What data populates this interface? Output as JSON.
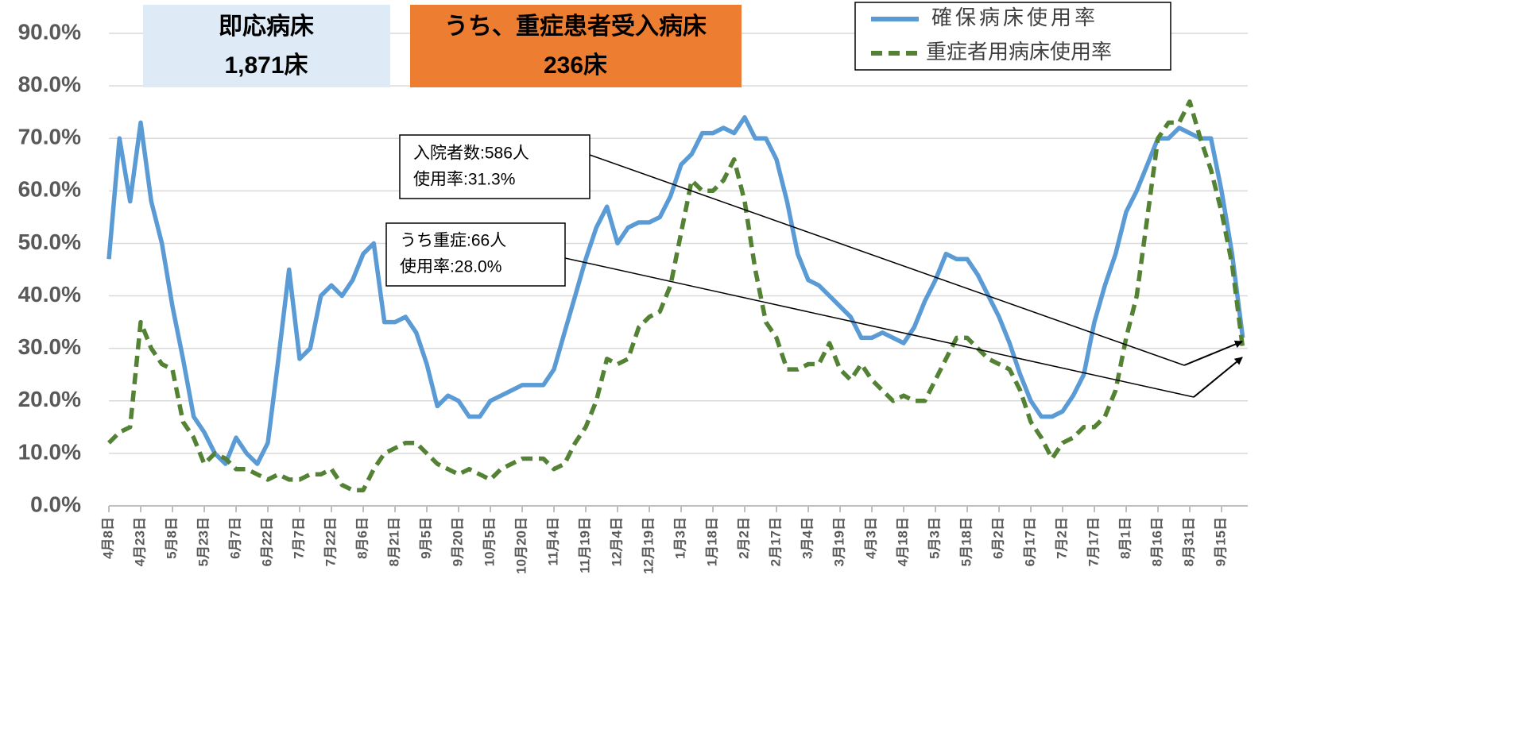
{
  "chart_data": {
    "type": "line",
    "categories": [
      "4月8日",
      null,
      null,
      "4月23日",
      null,
      null,
      "5月8日",
      null,
      null,
      "5月23日",
      null,
      null,
      "6月7日",
      null,
      null,
      "6月22日",
      null,
      null,
      "7月7日",
      null,
      null,
      "7月22日",
      null,
      null,
      "8月6日",
      null,
      null,
      "8月21日",
      null,
      null,
      "9月5日",
      null,
      null,
      "9月20日",
      null,
      null,
      "10月5日",
      null,
      null,
      "10月20日",
      null,
      null,
      "11月4日",
      null,
      null,
      "11月19日",
      null,
      null,
      "12月4日",
      null,
      null,
      "12月19日",
      null,
      null,
      "1月3日",
      null,
      null,
      "1月18日",
      null,
      null,
      "2月2日",
      null,
      null,
      "2月17日",
      null,
      null,
      "3月4日",
      null,
      null,
      "3月19日",
      null,
      null,
      "4月3日",
      null,
      null,
      "4月18日",
      null,
      null,
      "5月3日",
      null,
      null,
      "5月18日",
      null,
      null,
      "6月2日",
      null,
      null,
      "6月17日",
      null,
      null,
      "7月2日",
      null,
      null,
      "7月17日",
      null,
      null,
      "8月1日",
      null,
      null,
      "8月16日",
      null,
      null,
      "8月31日",
      null,
      null,
      "9月15日",
      null,
      null
    ],
    "series": [
      {
        "name": "確保病床使用率",
        "color": "#5b9bd5",
        "dash": false,
        "values": [
          47,
          70,
          58,
          73,
          58,
          50,
          38,
          28,
          17,
          14,
          10,
          8,
          13,
          10,
          8,
          12,
          28,
          45,
          28,
          30,
          40,
          42,
          40,
          43,
          48,
          50,
          35,
          35,
          36,
          33,
          27,
          19,
          21,
          20,
          17,
          17,
          20,
          21,
          22,
          23,
          23,
          23,
          26,
          33,
          40,
          47,
          53,
          57,
          50,
          53,
          54,
          54,
          55,
          59,
          65,
          67,
          71,
          71,
          72,
          71,
          74,
          70,
          70,
          66,
          58,
          48,
          43,
          42,
          40,
          38,
          36,
          32,
          32,
          33,
          32,
          31,
          34,
          39,
          43,
          48,
          47,
          47,
          44,
          40,
          36,
          31,
          25,
          20,
          17,
          17,
          18,
          21,
          25,
          35,
          42,
          48,
          56,
          60,
          65,
          70,
          70,
          72,
          71,
          70,
          70,
          60,
          48,
          32
        ]
      },
      {
        "name": "重症者用病床使用率",
        "color": "#548235",
        "dash": true,
        "values": [
          12,
          14,
          15,
          35,
          30,
          27,
          26,
          16,
          13,
          8,
          10,
          9,
          7,
          7,
          6,
          5,
          6,
          5,
          5,
          6,
          6,
          7,
          4,
          3,
          3,
          7,
          10,
          11,
          12,
          12,
          10,
          8,
          7,
          6,
          7,
          6,
          5,
          7,
          8,
          9,
          9,
          9,
          7,
          8,
          12,
          15,
          20,
          28,
          27,
          28,
          34,
          36,
          37,
          42,
          52,
          62,
          60,
          60,
          62,
          66,
          58,
          45,
          35,
          32,
          26,
          26,
          27,
          27,
          31,
          26,
          24,
          27,
          24,
          22,
          20,
          21,
          20,
          20,
          24,
          28,
          32,
          32,
          30,
          28,
          27,
          26,
          22,
          16,
          13,
          9,
          12,
          13,
          15,
          15,
          17,
          22,
          32,
          40,
          55,
          70,
          73,
          73,
          77,
          70,
          64,
          56,
          46,
          30
        ]
      }
    ],
    "ylim": [
      0,
      90
    ],
    "yticks": [
      {
        "value": 0,
        "label": "0.0%"
      },
      {
        "value": 10,
        "label": "10.0%"
      },
      {
        "value": 20,
        "label": "20.0%"
      },
      {
        "value": 30,
        "label": "30.0%"
      },
      {
        "value": 40,
        "label": "40.0%"
      },
      {
        "value": 50,
        "label": "50.0%"
      },
      {
        "value": 60,
        "label": "60.0%"
      },
      {
        "value": 70,
        "label": "70.0%"
      },
      {
        "value": 80,
        "label": "80.0%"
      },
      {
        "value": 90,
        "label": "90.0%"
      }
    ],
    "grid": true,
    "boxes": [
      {
        "title": "即応病床",
        "value": "1,871床",
        "color": "#deebf7"
      },
      {
        "title": "うち、重症患者受入病床",
        "value": "236床",
        "color": "#ed7d31"
      }
    ],
    "annotations": [
      {
        "lines": [
          "入院者数:586人",
          "使用率:31.3%"
        ]
      },
      {
        "lines": [
          "うち重症:66人",
          "使用率:28.0%"
        ]
      }
    ]
  }
}
